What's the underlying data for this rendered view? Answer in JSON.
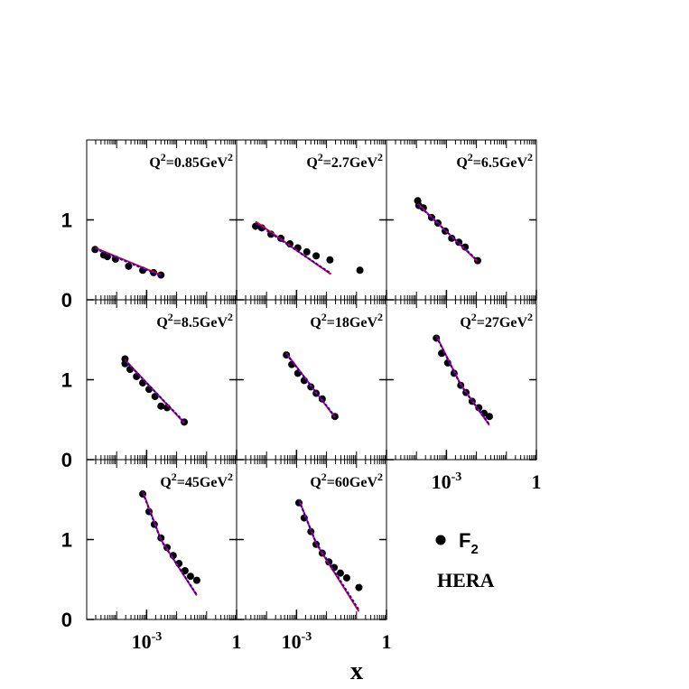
{
  "chart_data": {
    "type": "multi-panel-log-scatter",
    "xlabel": "x",
    "xlim": [
      1e-05,
      1
    ],
    "log_x": true,
    "ylim": [
      0,
      2
    ],
    "yticks": [
      0,
      1
    ],
    "xticks": [
      {
        "value": 0.001,
        "label": "10",
        "exponent": "-3"
      },
      1
    ],
    "legend": {
      "marker_label": "F",
      "marker_sub": "2",
      "note": "HERA",
      "marker_color": "#000000"
    },
    "panels": [
      {
        "label": [
          "Q",
          "2",
          "=0.85GeV",
          "2"
        ],
        "series": [
          {
            "type": "points",
            "color": "#000000",
            "x": [
              1.9e-05,
              3.7e-05,
              4.9e-05,
              9.1e-05,
              0.00025,
              0.00074,
              0.0017,
              0.003
            ],
            "values": [
              0.63,
              0.56,
              0.54,
              0.51,
              0.42,
              0.37,
              0.34,
              0.31
            ]
          },
          {
            "type": "line",
            "color": "#ff0000",
            "style": "solid",
            "x": [
              1.9e-05,
              0.003
            ],
            "values": [
              0.65,
              0.31
            ]
          },
          {
            "type": "line",
            "color": "#0000ff",
            "style": "dotted",
            "x": [
              1.9e-05,
              0.003
            ],
            "values": [
              0.64,
              0.3
            ]
          }
        ]
      },
      {
        "label": [
          "Q",
          "2",
          "=2.7GeV",
          "2"
        ],
        "series": [
          {
            "type": "points",
            "color": "#000000",
            "x": [
              4.3e-05,
              6.9e-05,
              0.00014,
              0.0003,
              0.0006,
              0.0011,
              0.0022,
              0.0045,
              0.013,
              0.13
            ],
            "values": [
              0.92,
              0.9,
              0.82,
              0.77,
              0.7,
              0.65,
              0.6,
              0.55,
              0.5,
              0.37
            ]
          },
          {
            "type": "line",
            "color": "#ff0000",
            "style": "solid",
            "x": [
              4.3e-05,
              0.014
            ],
            "values": [
              0.98,
              0.32
            ]
          },
          {
            "type": "line",
            "color": "#0000ff",
            "style": "dotted",
            "x": [
              4.3e-05,
              0.014
            ],
            "values": [
              0.96,
              0.33
            ]
          }
        ]
      },
      {
        "label": [
          "Q",
          "2",
          "=6.5GeV",
          "2"
        ],
        "series": [
          {
            "type": "points",
            "color": "#000000",
            "x": [
              0.00011,
              0.00012,
              0.00017,
              0.00032,
              0.00052,
              0.00091,
              0.0015,
              0.0026,
              0.0042,
              0.011
            ],
            "values": [
              1.24,
              1.18,
              1.15,
              1.03,
              0.96,
              0.86,
              0.77,
              0.72,
              0.66,
              0.49
            ]
          },
          {
            "type": "line",
            "color": "#ff0000",
            "style": "solid",
            "x": [
              0.00011,
              0.011
            ],
            "values": [
              1.2,
              0.48
            ]
          },
          {
            "type": "line",
            "color": "#0000ff",
            "style": "dotted",
            "x": [
              0.00011,
              0.011
            ],
            "values": [
              1.19,
              0.49
            ]
          }
        ]
      },
      {
        "label": [
          "Q",
          "2",
          "=8.5GeV",
          "2"
        ],
        "series": [
          {
            "type": "points",
            "color": "#000000",
            "x": [
              0.00019,
              0.00019,
              0.00028,
              0.00046,
              0.00074,
              0.0012,
              0.0019,
              0.003,
              0.0048,
              0.018
            ],
            "values": [
              1.26,
              1.2,
              1.13,
              1.04,
              0.96,
              0.88,
              0.79,
              0.67,
              0.65,
              0.47
            ]
          },
          {
            "type": "line",
            "color": "#ff0000",
            "style": "solid",
            "x": [
              0.00019,
              0.018
            ],
            "values": [
              1.25,
              0.46
            ]
          },
          {
            "type": "line",
            "color": "#0000ff",
            "style": "dotted",
            "x": [
              0.00019,
              0.018
            ],
            "values": [
              1.24,
              0.47
            ]
          }
        ]
      },
      {
        "label": [
          "Q",
          "2",
          "=18GeV",
          "2"
        ],
        "series": [
          {
            "type": "points",
            "color": "#000000",
            "x": [
              0.00046,
              0.00069,
              0.0011,
              0.0018,
              0.003,
              0.0045,
              0.0072,
              0.019
            ],
            "values": [
              1.31,
              1.19,
              1.08,
              0.99,
              0.91,
              0.83,
              0.76,
              0.54
            ]
          },
          {
            "type": "line",
            "color": "#ff0000",
            "style": "solid",
            "x": [
              0.00046,
              0.019
            ],
            "values": [
              1.33,
              0.53
            ]
          },
          {
            "type": "line",
            "color": "#0000ff",
            "style": "dotted",
            "x": [
              0.00046,
              0.019
            ],
            "values": [
              1.32,
              0.54
            ]
          }
        ]
      },
      {
        "label": [
          "Q",
          "2",
          "=27GeV",
          "2"
        ],
        "series": [
          {
            "type": "points",
            "color": "#000000",
            "x": [
              0.00046,
              0.00069,
              0.0011,
              0.0018,
              0.003,
              0.0045,
              0.0072,
              0.012,
              0.018,
              0.027
            ],
            "values": [
              1.52,
              1.33,
              1.21,
              1.08,
              0.93,
              0.84,
              0.73,
              0.65,
              0.58,
              0.54
            ]
          },
          {
            "type": "line",
            "color": "#ff0000",
            "style": "solid",
            "x": [
              0.00046,
              0.003,
              0.027
            ],
            "values": [
              1.55,
              0.94,
              0.43
            ]
          },
          {
            "type": "line",
            "color": "#0000ff",
            "style": "dotted",
            "x": [
              0.00046,
              0.003,
              0.027
            ],
            "values": [
              1.54,
              0.93,
              0.44
            ]
          }
        ]
      },
      {
        "label": [
          "Q",
          "2",
          "=45GeV",
          "2"
        ],
        "series": [
          {
            "type": "points",
            "color": "#000000",
            "x": [
              0.00074,
              0.0012,
              0.0018,
              0.003,
              0.0048,
              0.0077,
              0.012,
              0.019,
              0.029,
              0.047
            ],
            "values": [
              1.57,
              1.35,
              1.19,
              1.02,
              0.9,
              0.8,
              0.7,
              0.61,
              0.54,
              0.49
            ]
          },
          {
            "type": "line",
            "color": "#ff0000",
            "style": "solid",
            "x": [
              0.00074,
              0.003,
              0.047
            ],
            "values": [
              1.6,
              1.0,
              0.3
            ]
          },
          {
            "type": "line",
            "color": "#0000ff",
            "style": "dotted",
            "x": [
              0.00074,
              0.003,
              0.047
            ],
            "values": [
              1.59,
              0.99,
              0.31
            ]
          }
        ]
      },
      {
        "label": [
          "Q",
          "2",
          "=60GeV",
          "2"
        ],
        "series": [
          {
            "type": "points",
            "color": "#000000",
            "x": [
              0.0012,
              0.0018,
              0.003,
              0.0045,
              0.0072,
              0.012,
              0.018,
              0.029,
              0.047,
              0.12
            ],
            "values": [
              1.46,
              1.27,
              1.1,
              0.94,
              0.83,
              0.72,
              0.65,
              0.58,
              0.52,
              0.4
            ]
          },
          {
            "type": "line",
            "color": "#ff0000",
            "style": "solid",
            "x": [
              0.0012,
              0.0045,
              0.12
            ],
            "values": [
              1.5,
              0.95,
              0.1
            ]
          },
          {
            "type": "line",
            "color": "#0000ff",
            "style": "dotted",
            "x": [
              0.0012,
              0.0045,
              0.12
            ],
            "values": [
              1.49,
              0.96,
              0.12
            ]
          }
        ]
      }
    ]
  }
}
